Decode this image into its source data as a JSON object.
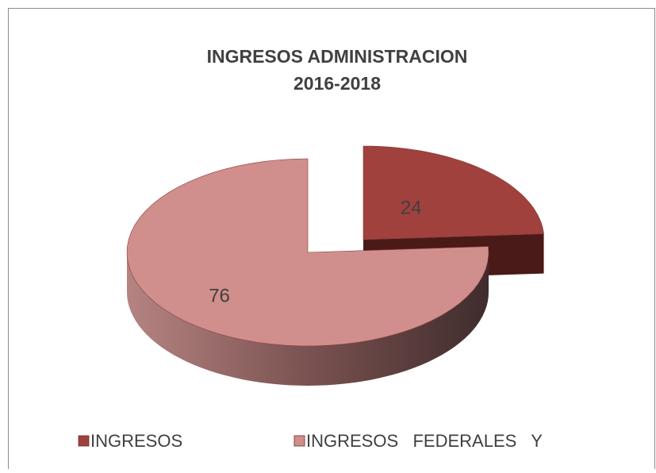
{
  "chart_data": {
    "type": "pie3d",
    "title": [
      "INGRESOS ADMINISTRACION",
      "2016-2018"
    ],
    "categories": [
      "INGRESOS",
      "INGRESOS   FEDERALES   Y"
    ],
    "values": [
      24,
      76
    ],
    "colors": [
      "#a0413e",
      "#d08f8c"
    ]
  }
}
